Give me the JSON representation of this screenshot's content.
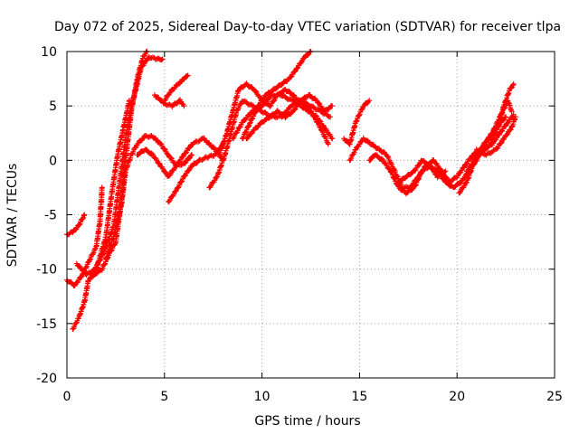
{
  "chart_data": {
    "type": "scatter",
    "title": "Day 072 of 2025, Sidereal Day-to-day VTEC variation (SDTVAR) for receiver tlpa",
    "xlabel": "GPS time / hours",
    "ylabel": "SDTVAR / TECUs",
    "xlim": [
      0,
      25
    ],
    "ylim": [
      -20,
      10
    ],
    "xticks": [
      "0",
      "5",
      "10",
      "15",
      "20",
      "25"
    ],
    "yticks": [
      "-20",
      "-15",
      "-10",
      "-5",
      "0",
      "5",
      "10"
    ],
    "grid": true,
    "marker": "plus",
    "color": "#ff0000",
    "series": [
      {
        "points": [
          [
            0.0,
            -6.8
          ],
          [
            0.3,
            -6.6
          ],
          [
            0.6,
            -6.0
          ],
          [
            0.9,
            -5.0
          ]
        ]
      },
      {
        "points": [
          [
            0.0,
            -11.0
          ],
          [
            0.4,
            -11.5
          ],
          [
            0.8,
            -10.5
          ],
          [
            1.2,
            -9.0
          ],
          [
            1.5,
            -8.0
          ],
          [
            1.7,
            -5.5
          ],
          [
            1.8,
            -2.5
          ]
        ]
      },
      {
        "points": [
          [
            0.3,
            -15.5
          ],
          [
            0.6,
            -14.5
          ],
          [
            0.9,
            -13.0
          ],
          [
            1.1,
            -11.0
          ],
          [
            1.4,
            -10.5
          ],
          [
            1.8,
            -10.0
          ],
          [
            2.2,
            -8.5
          ],
          [
            2.5,
            -7.5
          ],
          [
            2.7,
            -5.0
          ],
          [
            2.9,
            -2.0
          ],
          [
            3.1,
            1.5
          ],
          [
            3.3,
            4.5
          ],
          [
            3.6,
            7.5
          ],
          [
            3.9,
            9.5
          ],
          [
            4.1,
            10.0
          ]
        ]
      },
      {
        "points": [
          [
            0.5,
            -9.5
          ],
          [
            1.0,
            -10.5
          ],
          [
            1.5,
            -10.0
          ],
          [
            2.0,
            -7.0
          ],
          [
            2.3,
            -3.0
          ],
          [
            2.6,
            0.5
          ],
          [
            2.9,
            3.0
          ],
          [
            3.2,
            5.5
          ]
        ]
      },
      {
        "points": [
          [
            1.2,
            -10.5
          ],
          [
            1.6,
            -9.5
          ],
          [
            2.0,
            -8.0
          ],
          [
            2.4,
            -6.0
          ],
          [
            2.7,
            -2.0
          ],
          [
            3.0,
            2.0
          ],
          [
            3.3,
            5.0
          ],
          [
            3.6,
            7.0
          ],
          [
            3.8,
            8.5
          ],
          [
            4.2,
            9.5
          ],
          [
            4.6,
            9.3
          ],
          [
            4.9,
            9.3
          ]
        ]
      },
      {
        "points": [
          [
            2.0,
            -9.0
          ],
          [
            2.4,
            -7.0
          ],
          [
            2.8,
            -4.0
          ],
          [
            3.0,
            -1.0
          ],
          [
            3.3,
            0.5
          ],
          [
            3.6,
            1.5
          ],
          [
            4.0,
            2.2
          ],
          [
            4.4,
            2.2
          ],
          [
            4.8,
            1.5
          ],
          [
            5.2,
            0.5
          ],
          [
            5.6,
            -0.5
          ],
          [
            6.0,
            -0.3
          ],
          [
            6.4,
            0.5
          ]
        ]
      },
      {
        "points": [
          [
            3.6,
            0.5
          ],
          [
            4.0,
            1.0
          ],
          [
            4.4,
            0.5
          ],
          [
            4.8,
            -0.5
          ],
          [
            5.2,
            -1.5
          ],
          [
            5.6,
            -0.5
          ],
          [
            6.0,
            0.5
          ],
          [
            6.4,
            1.5
          ],
          [
            7.0,
            2.0
          ],
          [
            7.6,
            1.0
          ],
          [
            8.0,
            0.0
          ]
        ]
      },
      {
        "points": [
          [
            4.5,
            6.0
          ],
          [
            4.8,
            5.5
          ],
          [
            5.0,
            5.2
          ],
          [
            5.4,
            5.0
          ],
          [
            5.8,
            5.5
          ],
          [
            6.0,
            5.0
          ]
        ]
      },
      {
        "points": [
          [
            5.0,
            5.5
          ],
          [
            5.3,
            6.3
          ],
          [
            5.7,
            7.0
          ],
          [
            6.0,
            7.5
          ],
          [
            6.2,
            7.8
          ]
        ]
      },
      {
        "points": [
          [
            5.2,
            -3.8
          ],
          [
            5.6,
            -2.8
          ],
          [
            6.0,
            -1.5
          ],
          [
            6.4,
            -0.5
          ],
          [
            6.8,
            0.0
          ],
          [
            7.2,
            0.3
          ],
          [
            7.6,
            0.5
          ],
          [
            8.0,
            1.5
          ]
        ]
      },
      {
        "points": [
          [
            7.3,
            -2.5
          ],
          [
            7.7,
            -1.5
          ],
          [
            8.1,
            0.5
          ],
          [
            8.4,
            2.5
          ],
          [
            8.7,
            4.5
          ],
          [
            9.0,
            5.5
          ],
          [
            9.5,
            5.0
          ],
          [
            10.0,
            4.5
          ],
          [
            10.5,
            4.0
          ],
          [
            11.0,
            4.0
          ],
          [
            11.5,
            5.0
          ],
          [
            12.0,
            5.5
          ],
          [
            12.5,
            5.0
          ],
          [
            13.0,
            4.5
          ],
          [
            13.5,
            4.0
          ]
        ]
      },
      {
        "points": [
          [
            7.8,
            0.5
          ],
          [
            8.2,
            2.5
          ],
          [
            8.5,
            4.5
          ],
          [
            8.8,
            6.5
          ],
          [
            9.2,
            7.0
          ],
          [
            9.6,
            6.5
          ],
          [
            10.0,
            5.5
          ],
          [
            10.4,
            5.0
          ],
          [
            10.8,
            6.0
          ],
          [
            11.2,
            6.5
          ],
          [
            11.6,
            6.0
          ],
          [
            12.0,
            5.0
          ],
          [
            12.4,
            4.5
          ],
          [
            12.8,
            4.0
          ],
          [
            13.2,
            3.0
          ],
          [
            13.6,
            2.0
          ]
        ]
      },
      {
        "points": [
          [
            9.0,
            2.0
          ],
          [
            9.4,
            3.5
          ],
          [
            9.8,
            5.0
          ],
          [
            10.2,
            6.0
          ],
          [
            10.6,
            6.5
          ],
          [
            11.0,
            7.0
          ],
          [
            11.4,
            7.5
          ],
          [
            11.8,
            8.5
          ],
          [
            12.2,
            9.5
          ],
          [
            12.5,
            10.0
          ]
        ]
      },
      {
        "points": [
          [
            9.2,
            2.0
          ],
          [
            9.6,
            2.8
          ],
          [
            10.0,
            3.5
          ],
          [
            10.4,
            4.0
          ],
          [
            10.8,
            4.5
          ],
          [
            11.2,
            4.0
          ],
          [
            11.6,
            4.5
          ],
          [
            12.0,
            5.5
          ],
          [
            12.4,
            6.0
          ],
          [
            12.8,
            5.5
          ],
          [
            13.2,
            4.5
          ],
          [
            13.6,
            5.0
          ]
        ]
      },
      {
        "points": [
          [
            8.5,
            2.0
          ],
          [
            9.0,
            3.5
          ],
          [
            9.5,
            4.5
          ],
          [
            10.0,
            5.0
          ],
          [
            10.5,
            6.0
          ],
          [
            11.0,
            6.0
          ],
          [
            11.5,
            5.5
          ],
          [
            12.0,
            5.5
          ],
          [
            12.5,
            4.5
          ],
          [
            13.0,
            3.0
          ],
          [
            13.4,
            1.5
          ]
        ]
      },
      {
        "points": [
          [
            14.2,
            2.0
          ],
          [
            14.5,
            1.5
          ],
          [
            14.8,
            3.5
          ],
          [
            15.2,
            5.0
          ],
          [
            15.5,
            5.5
          ]
        ]
      },
      {
        "points": [
          [
            14.5,
            0.0
          ],
          [
            14.8,
            1.0
          ],
          [
            15.2,
            2.0
          ],
          [
            15.6,
            1.5
          ],
          [
            16.0,
            1.0
          ],
          [
            16.4,
            0.5
          ],
          [
            16.8,
            -1.0
          ],
          [
            17.2,
            -2.5
          ],
          [
            17.6,
            -2.5
          ],
          [
            18.0,
            -1.5
          ],
          [
            18.4,
            -0.5
          ],
          [
            18.8,
            0.0
          ],
          [
            19.2,
            -1.0
          ],
          [
            19.6,
            -2.0
          ],
          [
            20.0,
            -1.5
          ],
          [
            20.4,
            -0.5
          ],
          [
            20.8,
            0.5
          ],
          [
            21.2,
            1.0
          ],
          [
            21.6,
            2.0
          ],
          [
            22.0,
            3.0
          ],
          [
            22.5,
            4.0
          ]
        ]
      },
      {
        "points": [
          [
            15.5,
            0.0
          ],
          [
            15.8,
            0.5
          ],
          [
            16.2,
            0.0
          ],
          [
            16.6,
            -1.0
          ],
          [
            17.0,
            -2.5
          ],
          [
            17.4,
            -3.0
          ],
          [
            17.8,
            -2.5
          ],
          [
            18.2,
            -1.0
          ],
          [
            18.6,
            -0.5
          ],
          [
            19.0,
            -1.0
          ],
          [
            19.4,
            -2.0
          ],
          [
            19.8,
            -2.5
          ],
          [
            20.2,
            -2.0
          ],
          [
            20.6,
            -1.0
          ],
          [
            21.0,
            0.0
          ],
          [
            21.4,
            1.5
          ],
          [
            21.8,
            2.5
          ],
          [
            22.2,
            4.0
          ],
          [
            22.6,
            5.5
          ],
          [
            22.8,
            4.5
          ]
        ]
      },
      {
        "points": [
          [
            17.0,
            -2.0
          ],
          [
            17.4,
            -1.5
          ],
          [
            17.8,
            -1.0
          ],
          [
            18.2,
            0.0
          ],
          [
            18.6,
            -0.5
          ],
          [
            19.0,
            -1.5
          ],
          [
            19.4,
            -1.0
          ]
        ]
      },
      {
        "points": [
          [
            20.1,
            -3.0
          ],
          [
            20.5,
            -2.0
          ],
          [
            20.8,
            -0.5
          ],
          [
            21.0,
            0.5
          ],
          [
            21.4,
            1.0
          ],
          [
            21.8,
            1.5
          ],
          [
            22.2,
            2.5
          ],
          [
            22.6,
            3.5
          ],
          [
            22.9,
            4.2
          ]
        ]
      },
      {
        "points": [
          [
            20.5,
            -1.0
          ],
          [
            20.9,
            0.0
          ],
          [
            21.3,
            0.8
          ],
          [
            21.7,
            1.5
          ],
          [
            22.1,
            3.0
          ],
          [
            22.4,
            5.0
          ],
          [
            22.7,
            6.5
          ],
          [
            22.9,
            7.0
          ]
        ]
      },
      {
        "points": [
          [
            21.0,
            1.0
          ],
          [
            21.5,
            0.5
          ],
          [
            22.0,
            1.0
          ],
          [
            22.4,
            2.0
          ],
          [
            22.8,
            3.0
          ],
          [
            23.0,
            4.0
          ]
        ]
      }
    ]
  }
}
